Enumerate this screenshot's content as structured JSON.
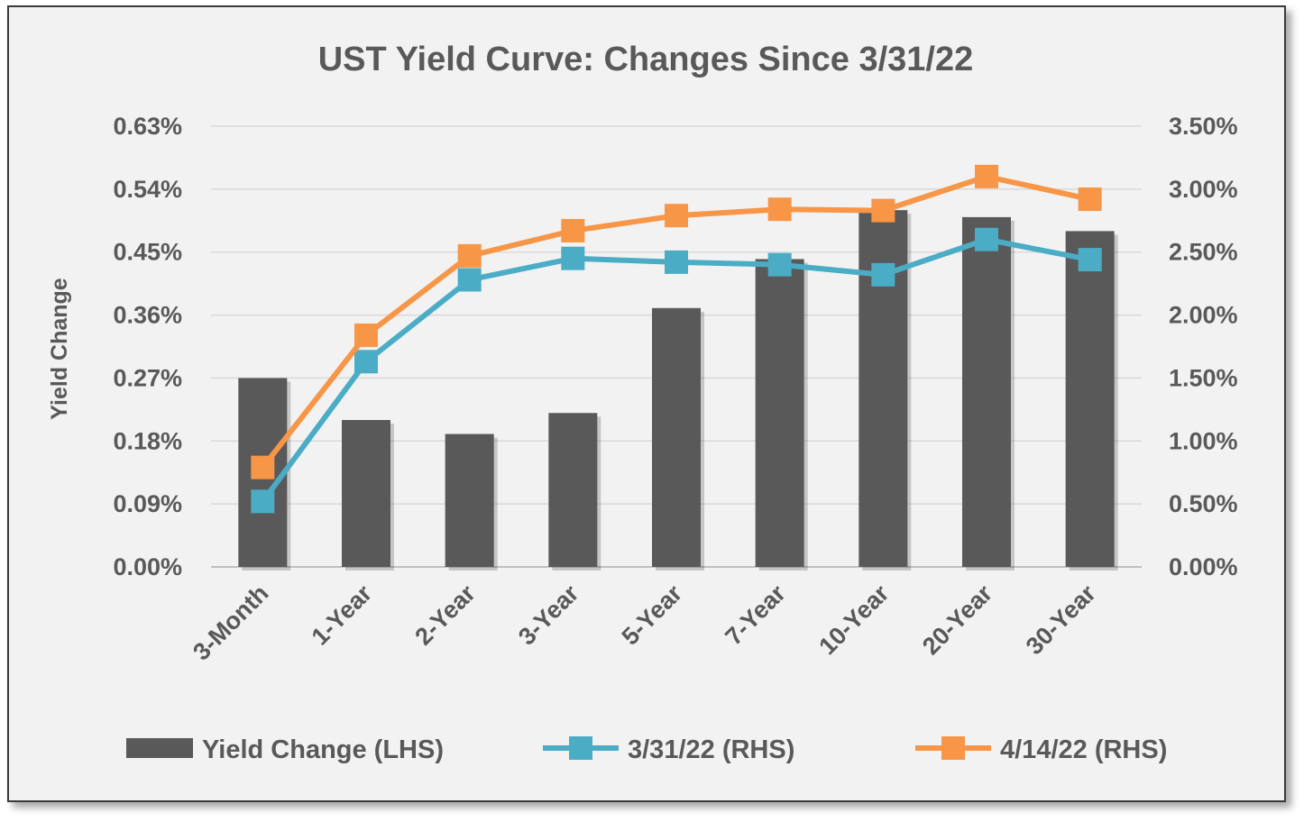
{
  "chart_data": {
    "type": "bar",
    "title": "UST Yield Curve: Changes Since 3/31/22",
    "ylabel": "Yield Change",
    "categories": [
      "3-Month",
      "1-Year",
      "2-Year",
      "3-Year",
      "5-Year",
      "7-Year",
      "10-Year",
      "20-Year",
      "30-Year"
    ],
    "y_left": {
      "ticks": [
        "0.00%",
        "0.09%",
        "0.18%",
        "0.27%",
        "0.36%",
        "0.45%",
        "0.54%",
        "0.63%"
      ],
      "ylim": [
        0,
        0.63
      ]
    },
    "y_right": {
      "ticks": [
        "0.00%",
        "0.50%",
        "1.00%",
        "1.50%",
        "2.00%",
        "2.50%",
        "3.00%",
        "3.50%"
      ],
      "ylim": [
        0,
        3.5
      ]
    },
    "grid": true,
    "legend_position": "bottom",
    "series": [
      {
        "name": "Yield Change (LHS)",
        "kind": "bar",
        "axis": "left",
        "color": "#595959",
        "values": [
          0.27,
          0.21,
          0.19,
          0.22,
          0.37,
          0.44,
          0.51,
          0.5,
          0.48
        ]
      },
      {
        "name": "3/31/22 (RHS)",
        "kind": "line",
        "axis": "right",
        "color": "#4bacc6",
        "marker": "square",
        "values": [
          0.52,
          1.63,
          2.28,
          2.45,
          2.42,
          2.4,
          2.32,
          2.6,
          2.44
        ]
      },
      {
        "name": "4/14/22 (RHS)",
        "kind": "line",
        "axis": "right",
        "color": "#f79646",
        "marker": "square",
        "values": [
          0.79,
          1.84,
          2.47,
          2.67,
          2.79,
          2.84,
          2.83,
          3.1,
          2.92
        ]
      }
    ]
  }
}
